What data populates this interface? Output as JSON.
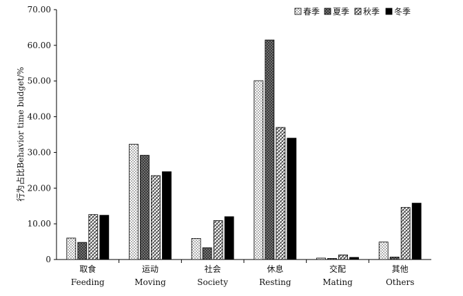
{
  "chart_data": {
    "type": "bar",
    "title": "",
    "xlabel": "",
    "ylabel": "行为占比Behavior time budget/%",
    "ylim": [
      0,
      70
    ],
    "yticks": [
      "0",
      "10.00",
      "20.00",
      "30.00",
      "40.00",
      "50.00",
      "60.00",
      "70.00"
    ],
    "categories": [
      {
        "zh": "取食",
        "en": "Feeding"
      },
      {
        "zh": "运动",
        "en": "Moving"
      },
      {
        "zh": "社会",
        "en": "Society"
      },
      {
        "zh": "休息",
        "en": "Resting"
      },
      {
        "zh": "交配",
        "en": "Mating"
      },
      {
        "zh": "其他",
        "en": "Others"
      }
    ],
    "series": [
      {
        "name": "春季",
        "pattern": "dots",
        "values": [
          6.0,
          32.3,
          5.9,
          50.1,
          0.4,
          4.9
        ]
      },
      {
        "name": "夏季",
        "pattern": "crosshatch",
        "values": [
          4.8,
          29.2,
          3.3,
          61.5,
          0.3,
          0.7
        ]
      },
      {
        "name": "秋季",
        "pattern": "diagonal",
        "values": [
          12.6,
          23.5,
          10.9,
          37.0,
          1.3,
          14.6
        ]
      },
      {
        "name": "冬季",
        "pattern": "solid",
        "values": [
          12.4,
          24.6,
          12.0,
          34.0,
          0.6,
          15.8
        ]
      }
    ],
    "legend_position": "top-right",
    "grid": false
  }
}
